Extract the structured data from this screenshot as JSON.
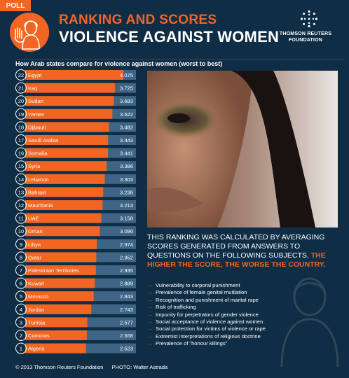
{
  "header": {
    "poll_tag": "POLL",
    "title_line1": "RANKING AND SCORES",
    "title_line2": "VIOLENCE AGAINST WOMEN",
    "org_line1": "THOMSON REUTERS",
    "org_line2": "FOUNDATION"
  },
  "chart_data": {
    "type": "bar",
    "title": "How Arab states compare for violence against women (worst to best)",
    "ranks": [
      22,
      21,
      20,
      19,
      18,
      17,
      16,
      15,
      14,
      13,
      12,
      11,
      10,
      9,
      8,
      7,
      6,
      5,
      4,
      3,
      2,
      1
    ],
    "categories": [
      "Egypt",
      "Iraq",
      "Sudan",
      "Yemen",
      "Djibouti",
      "Saudi Arabia",
      "Somalia",
      "Syria",
      "Lebanon",
      "Bahrain",
      "Mauritania",
      "UAE",
      "Oman",
      "Libya",
      "Qatar",
      "Palestinian Territories",
      "Kuwait",
      "Morocco",
      "Jordan",
      "Tunisia",
      "Comoros",
      "Algeria"
    ],
    "labels": [
      "4.075",
      "3.725",
      "3.683",
      "3.622",
      "3.482",
      "3.443",
      "3.441",
      "3.386",
      "3.303",
      "3.238",
      "3.213",
      "3.158",
      "3.096",
      "2.974",
      "2.952",
      "2.935",
      "2.889",
      "2.843",
      "2.743",
      "2.577",
      "2.558",
      "2.523"
    ],
    "values": [
      4.075,
      3.725,
      3.683,
      3.622,
      3.482,
      3.443,
      3.441,
      3.386,
      3.303,
      3.238,
      3.213,
      3.158,
      3.096,
      2.974,
      2.952,
      2.935,
      2.889,
      2.843,
      2.743,
      2.577,
      2.558,
      2.523
    ],
    "bar_color": "#f26522",
    "track_color": "#3e6585"
  },
  "info": {
    "intro": "THIS RANKING WAS CALCULATED BY AVERAGING SCORES GENERATED FROM ANSWERS TO QUESTIONS ON THE FOLLOWING SUBJECTS.",
    "highlight": "THE HIGHER THE SCORE, THE WORSE THE COUNTRY."
  },
  "subjects": [
    "Vulnerability to corporal punishment",
    "Prevalence of female genital mutilation",
    "Recognition and punishment of marital rape",
    "Risk of trafficking",
    "Impunity for perpetrators of gender violence",
    "Social acceptance of violence against women",
    "Social protection for victims of violence or rape",
    "Extremist interpretations of religious doctrine",
    "Prevalence of “honour killings”"
  ],
  "footer": {
    "copyright": "© 2013 Thomson Reuters Foundation",
    "photo_credit": "PHOTO: Walter Astrada"
  },
  "colors": {
    "background": "#0f2d45",
    "accent": "#f26522"
  }
}
